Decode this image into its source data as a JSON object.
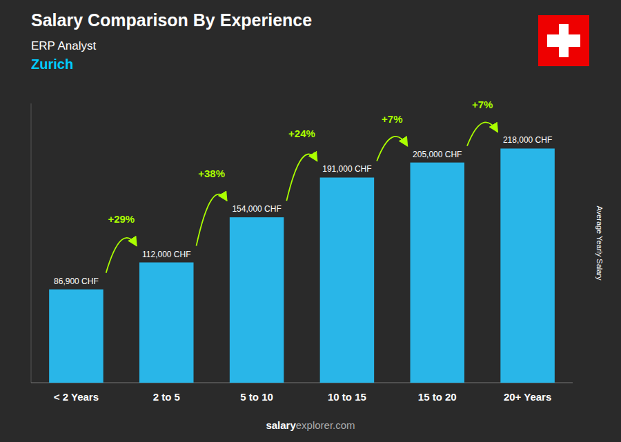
{
  "chart_data": {
    "type": "bar",
    "title": "Salary Comparison By Experience",
    "subtitle": [
      "ERP Analyst",
      "Zurich"
    ],
    "y_label": "Average Yearly Salary",
    "categories": [
      "< 2 Years",
      "2 to 5",
      "5 to 10",
      "10 to 15",
      "15 to 20",
      "20+ Years"
    ],
    "values": [
      86900,
      112000,
      154000,
      191000,
      205000,
      218000
    ],
    "value_labels": [
      "86,900 CHF",
      "112,000 CHF",
      "154,000 CHF",
      "191,000 CHF",
      "205,000 CHF",
      "218,000 CHF"
    ],
    "data_labels": true,
    "annotations": [
      "+29%",
      "+38%",
      "+24%",
      "+7%",
      "+7%"
    ],
    "footer": [
      "salary",
      "explorer.com"
    ],
    "color": "#29b6e8",
    "ylim": [
      0,
      260000
    ],
    "tick_labels": "x",
    "grid": false
  }
}
